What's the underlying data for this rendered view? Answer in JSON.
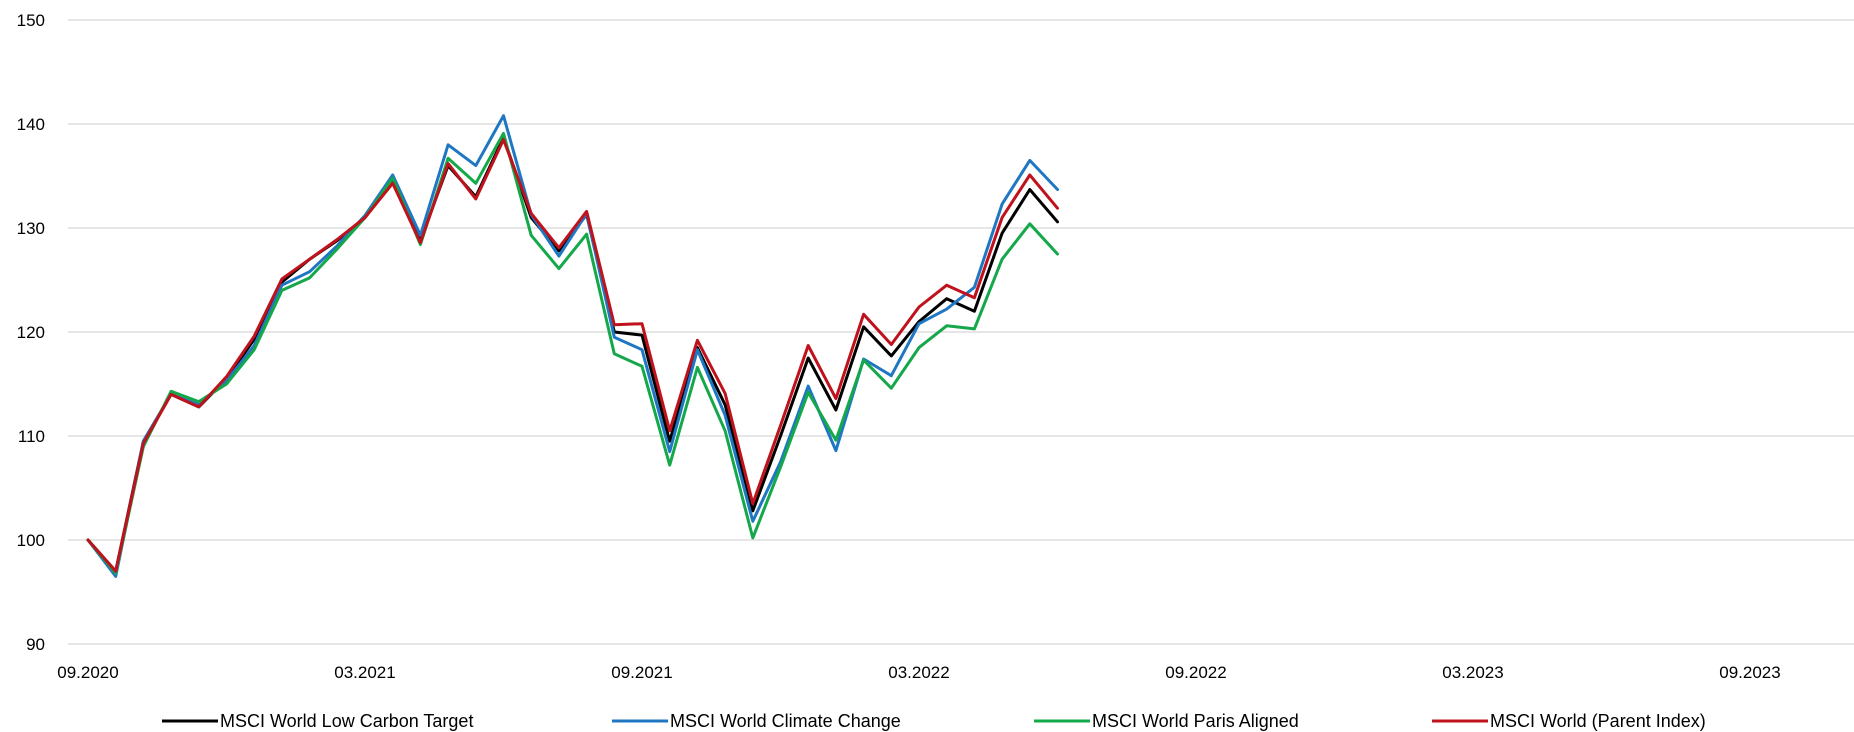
{
  "chart_data": {
    "type": "line",
    "title": "",
    "xlabel": "",
    "ylabel": "",
    "ylim": [
      90,
      150
    ],
    "yticks": [
      "90",
      "100",
      "110",
      "120",
      "130",
      "140",
      "150"
    ],
    "xtick_labels": [
      "09.2020",
      "03.2021",
      "09.2021",
      "03.2022",
      "09.2022",
      "03.2023",
      "09.2023"
    ],
    "grid": "horizontal",
    "legend_position": "bottom",
    "series": [
      {
        "name": "MSCI World Low Carbon Target",
        "color": "#000000",
        "values": [
          100,
          97,
          109.5,
          114,
          112.8,
          115.5,
          119.3,
          124.8,
          127,
          128.8,
          131,
          134.5,
          128.8,
          136,
          133,
          138.7,
          131,
          127.8,
          131.3,
          120,
          119.7,
          109.5,
          118.5,
          113,
          102.8,
          110,
          117.5,
          112.5,
          120.5,
          117.7,
          121,
          123.2,
          122,
          129.5,
          133.7,
          130.6
        ]
      },
      {
        "name": "MSCI World Climate Change",
        "color": "#1f77c4",
        "values": [
          100,
          96.5,
          109.5,
          114,
          113,
          115.3,
          118.7,
          124.5,
          125.8,
          128.3,
          131.2,
          135.1,
          129.3,
          138,
          136,
          140.8,
          131.3,
          127.3,
          131.4,
          119.5,
          118.3,
          108.5,
          118.3,
          112,
          101.8,
          107.5,
          114.8,
          108.6,
          117.4,
          115.8,
          120.8,
          122.2,
          124.3,
          132.3,
          136.5,
          133.7
        ]
      },
      {
        "name": "MSCI World Paris Aligned",
        "color": "#14a84a",
        "values": [
          100,
          96.8,
          109,
          114.3,
          113.3,
          115,
          118.3,
          124,
          125.2,
          128,
          131,
          134.8,
          128.4,
          136.7,
          134.3,
          139.1,
          129.3,
          126.1,
          129.4,
          117.9,
          116.7,
          107.2,
          116.6,
          110.5,
          100.2,
          107,
          114.2,
          109.6,
          117.3,
          114.6,
          118.5,
          120.6,
          120.3,
          127,
          130.4,
          127.5
        ]
      },
      {
        "name": "MSCI World (Parent Index)",
        "color": "#c0121c",
        "values": [
          100,
          97,
          109.3,
          114,
          112.8,
          115.7,
          119.6,
          125.1,
          127,
          128.9,
          131,
          134.3,
          128.6,
          136.2,
          132.8,
          138.5,
          131.4,
          128.1,
          131.6,
          120.7,
          120.8,
          110.5,
          119.2,
          114.1,
          103.5,
          111,
          118.7,
          113.6,
          121.7,
          118.8,
          122.4,
          124.5,
          123.3,
          131,
          135.1,
          131.9
        ]
      }
    ]
  }
}
